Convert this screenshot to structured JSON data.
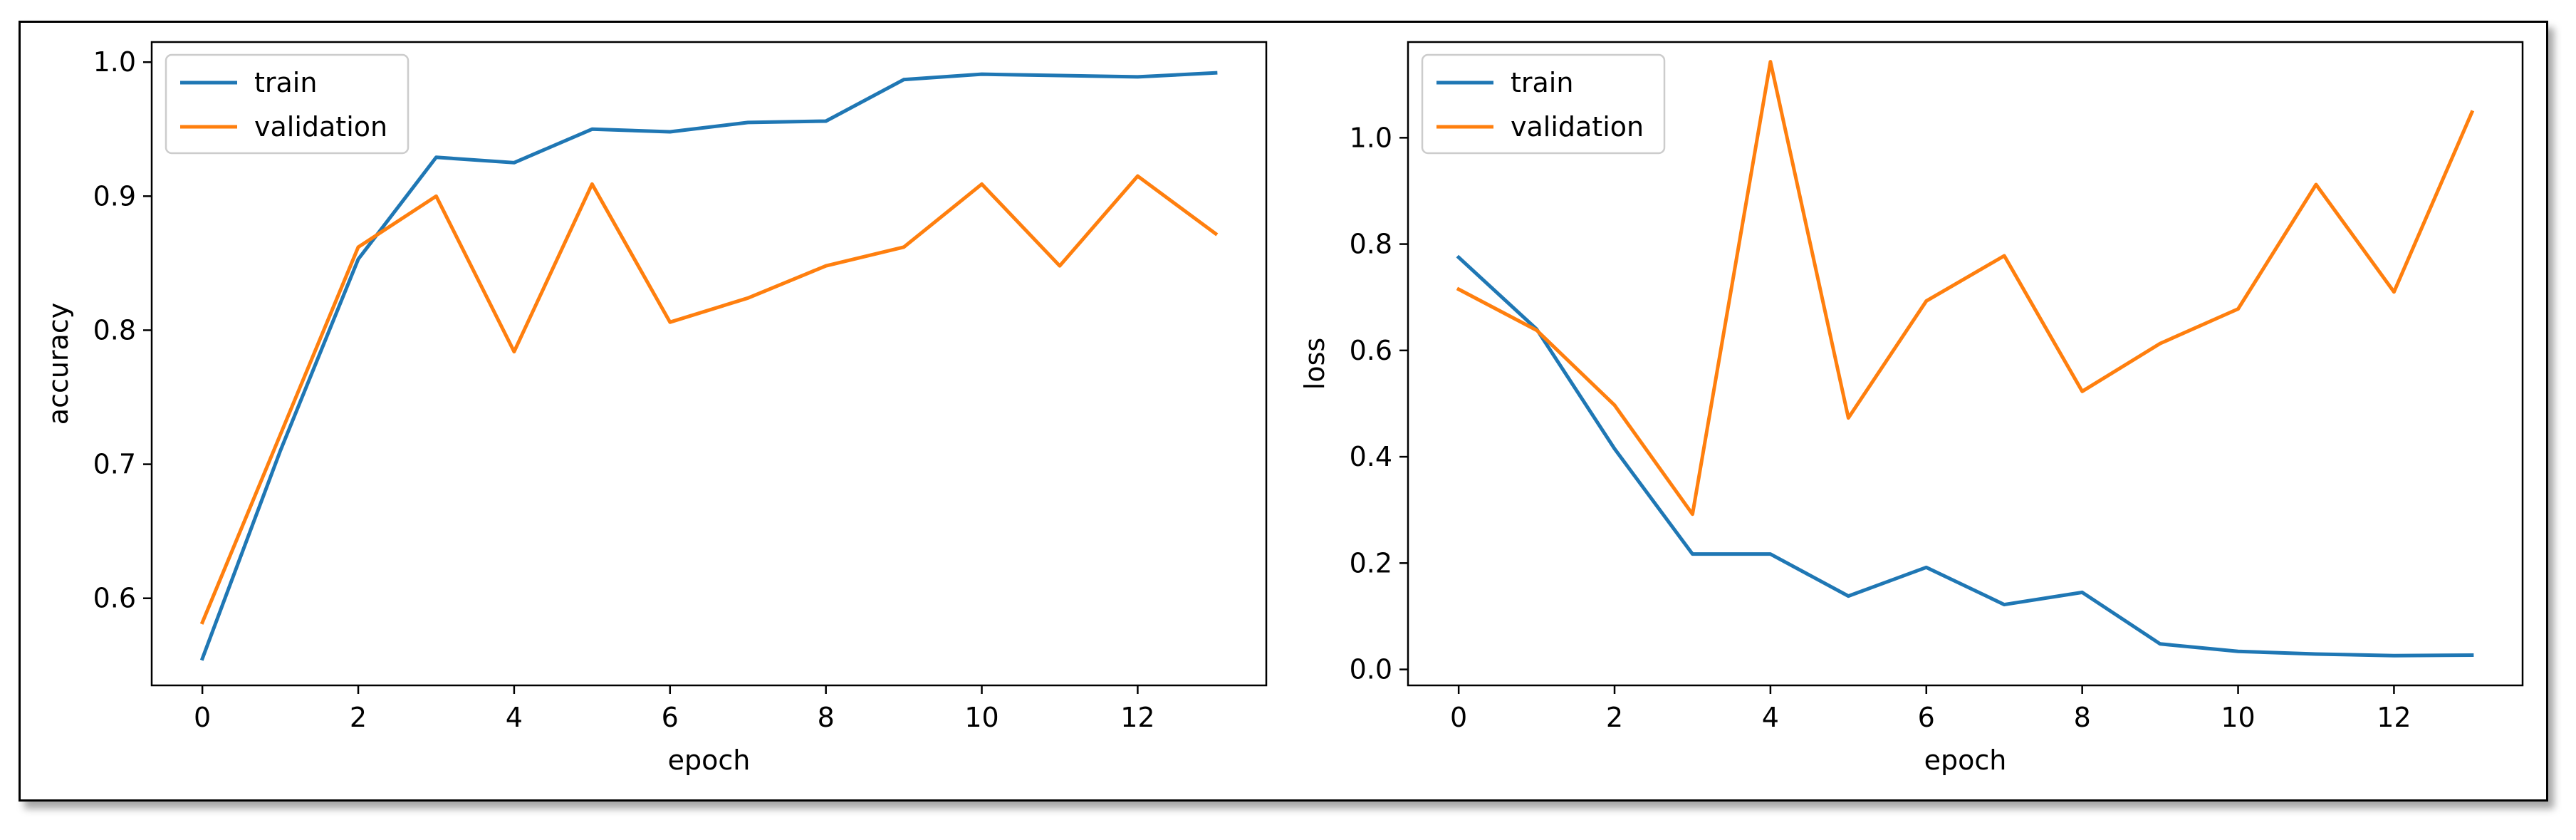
{
  "chart_data": [
    {
      "type": "line",
      "xlabel": "epoch",
      "ylabel": "accuracy",
      "x": [
        0,
        1,
        2,
        3,
        4,
        5,
        6,
        7,
        8,
        9,
        10,
        11,
        12,
        13
      ],
      "xlim": [
        -0.65,
        13.65
      ],
      "ylim": [
        0.535,
        1.015
      ],
      "xticks": [
        0,
        2,
        4,
        6,
        8,
        10,
        12
      ],
      "yticks": [
        0.6,
        0.7,
        0.8,
        0.9,
        1.0
      ],
      "ytick_labels": [
        "0.6",
        "0.7",
        "0.8",
        "0.9",
        "1.0"
      ],
      "legend_position": "top-left",
      "grid": false,
      "series": [
        {
          "name": "train",
          "color": "#1f77b4",
          "values": [
            0.555,
            0.71,
            0.853,
            0.929,
            0.925,
            0.95,
            0.948,
            0.955,
            0.956,
            0.987,
            0.991,
            0.99,
            0.989,
            0.992
          ]
        },
        {
          "name": "validation",
          "color": "#ff7f0e",
          "values": [
            0.582,
            0.722,
            0.862,
            0.9,
            0.784,
            0.909,
            0.806,
            0.824,
            0.848,
            0.862,
            0.909,
            0.848,
            0.915,
            0.872
          ]
        }
      ]
    },
    {
      "type": "line",
      "xlabel": "epoch",
      "ylabel": "loss",
      "x": [
        0,
        1,
        2,
        3,
        4,
        5,
        6,
        7,
        8,
        9,
        10,
        11,
        12,
        13
      ],
      "xlim": [
        -0.65,
        13.65
      ],
      "ylim": [
        -0.03,
        1.18
      ],
      "xticks": [
        0,
        2,
        4,
        6,
        8,
        10,
        12
      ],
      "yticks": [
        0.0,
        0.2,
        0.4,
        0.6,
        0.8,
        1.0
      ],
      "ytick_labels": [
        "0.0",
        "0.2",
        "0.4",
        "0.6",
        "0.8",
        "1.0"
      ],
      "legend_position": "top-left",
      "grid": false,
      "series": [
        {
          "name": "train",
          "color": "#1f77b4",
          "values": [
            0.775,
            0.64,
            0.415,
            0.217,
            0.217,
            0.138,
            0.192,
            0.122,
            0.145,
            0.048,
            0.034,
            0.029,
            0.026,
            0.027
          ]
        },
        {
          "name": "validation",
          "color": "#ff7f0e",
          "values": [
            0.715,
            0.638,
            0.497,
            0.292,
            1.143,
            0.473,
            0.693,
            0.778,
            0.523,
            0.613,
            0.678,
            0.912,
            0.71,
            1.048
          ]
        }
      ]
    }
  ]
}
